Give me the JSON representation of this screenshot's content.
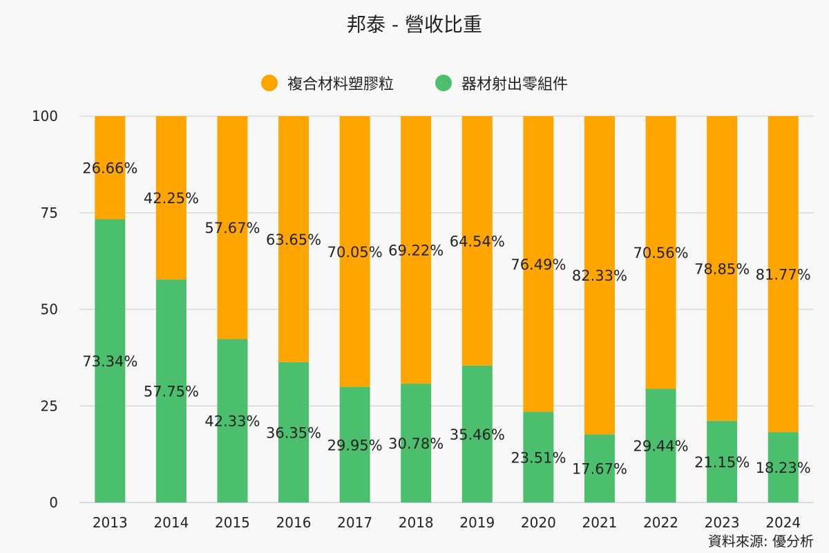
{
  "header": {
    "title": "邦泰 - 營收比重"
  },
  "legend": {
    "items": [
      {
        "label": "複合材料塑膠粒",
        "color": "#FFA500"
      },
      {
        "label": "器材射出零組件",
        "color": "#4CBF6E"
      }
    ]
  },
  "footer": {
    "source": "資料來源: 優分析"
  },
  "chart_data": {
    "type": "bar",
    "stacked": true,
    "categories": [
      "2013",
      "2014",
      "2015",
      "2016",
      "2017",
      "2018",
      "2019",
      "2020",
      "2021",
      "2022",
      "2023",
      "2024"
    ],
    "series": [
      {
        "name": "器材射出零組件",
        "color": "#4CBF6E",
        "values": [
          73.34,
          57.75,
          42.33,
          36.35,
          29.95,
          30.78,
          35.46,
          23.51,
          17.67,
          29.44,
          21.15,
          18.23
        ],
        "labels": [
          "73.34%",
          "57.75%",
          "42.33%",
          "36.35%",
          "29.95%",
          "30.78%",
          "35.46%",
          "23.51%",
          "17.67%",
          "29.44%",
          "21.15%",
          "18.23%"
        ]
      },
      {
        "name": "複合材料塑膠粒",
        "color": "#FFA500",
        "values": [
          26.66,
          42.25,
          57.67,
          63.65,
          70.05,
          69.22,
          64.54,
          76.49,
          82.33,
          70.56,
          78.85,
          81.77
        ],
        "labels": [
          "26.66%",
          "42.25%",
          "57.67%",
          "63.65%",
          "70.05%",
          "69.22%",
          "64.54%",
          "76.49%",
          "82.33%",
          "70.56%",
          "78.85%",
          "81.77%"
        ]
      }
    ],
    "yticks": [
      "0",
      "25",
      "50",
      "75",
      "100"
    ],
    "ylim": [
      0,
      100
    ],
    "grid": true,
    "legend_position": "top"
  }
}
